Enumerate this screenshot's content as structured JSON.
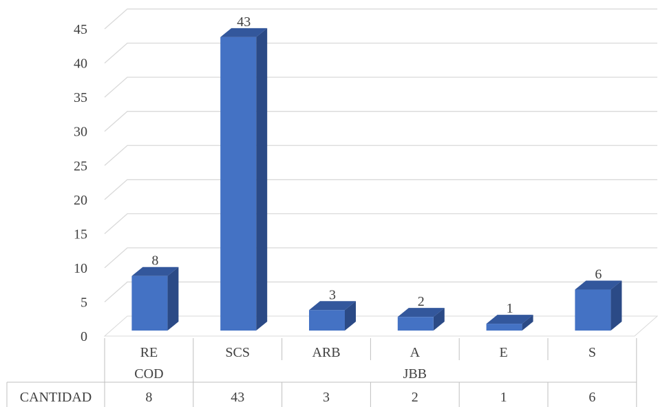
{
  "chart_data": {
    "type": "bar",
    "style": "3d-column",
    "categories": [
      "RE",
      "SCS",
      "ARB",
      "A",
      "E",
      "S"
    ],
    "groups": [
      {
        "label": "COD",
        "categories": [
          "RE"
        ]
      },
      {
        "label": "JBB",
        "categories": [
          "SCS",
          "ARB",
          "A",
          "E",
          "S"
        ]
      }
    ],
    "series": [
      {
        "name": "CANTIDAD",
        "values": [
          8,
          43,
          3,
          2,
          1,
          6
        ],
        "color": "#4472C4"
      }
    ],
    "data_labels": [
      "8",
      "43",
      "3",
      "2",
      "1",
      "6"
    ],
    "y_ticks": [
      "0",
      "5",
      "10",
      "15",
      "20",
      "25",
      "30",
      "35",
      "40",
      "45"
    ],
    "ylim": [
      0,
      45
    ],
    "grid": true,
    "data_table": {
      "row_label": "CANTIDAD",
      "cells": [
        "8",
        "43",
        "3",
        "2",
        "1",
        "6"
      ]
    },
    "colors": {
      "bar_front": "#4472C4",
      "bar_side": "#2B4A86",
      "bar_top": "#33579C",
      "grid": "#D9D9D9",
      "text": "#404040"
    }
  }
}
